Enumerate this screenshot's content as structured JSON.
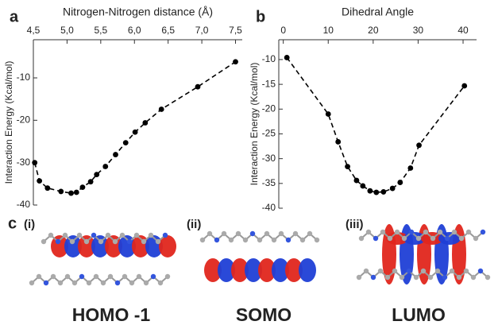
{
  "chart_data": [
    {
      "type": "line",
      "panel": "a",
      "title": "Nitrogen-Nitrogen distance (Å)",
      "ylabel": "Interaction Energy (Kcal/mol)",
      "x": [
        4.52,
        4.59,
        4.71,
        4.91,
        5.06,
        5.14,
        5.23,
        5.35,
        5.44,
        5.57,
        5.72,
        5.87,
        6.01,
        6.16,
        6.4,
        6.94,
        7.5
      ],
      "values": [
        -30,
        -34.3,
        -36,
        -36.8,
        -37.2,
        -37,
        -35.8,
        -34.5,
        -32.8,
        -30.9,
        -28.1,
        -25.3,
        -22.8,
        -20.6,
        -17.4,
        -12.1,
        -6.2
      ],
      "color": "#000000",
      "xlim": [
        4.5,
        7.6
      ],
      "ylim": [
        -40,
        -1
      ],
      "xticks": [
        {
          "value": 4.5,
          "label": "4,5"
        },
        {
          "value": 5.0,
          "label": "5,0"
        },
        {
          "value": 5.5,
          "label": "5,5"
        },
        {
          "value": 6.0,
          "label": "6,0"
        },
        {
          "value": 6.5,
          "label": "6,5"
        },
        {
          "value": 7.0,
          "label": "7,0"
        },
        {
          "value": 7.5,
          "label": "7,5"
        }
      ],
      "yticks": [
        -10,
        -20,
        -30,
        -40
      ]
    },
    {
      "type": "line",
      "panel": "b",
      "title": "Dihedral Angle",
      "ylabel": "Interaction Energy (Kcal/mol)",
      "x": [
        0.8,
        10,
        12.2,
        14.3,
        16.3,
        17.7,
        19.3,
        20.7,
        22.3,
        24.3,
        26,
        28.3,
        30.2,
        40.3
      ],
      "values": [
        -9.6,
        -21,
        -26.6,
        -31.6,
        -34.4,
        -35.5,
        -36.5,
        -36.8,
        -36.7,
        -36,
        -34.8,
        -31.9,
        -27.3,
        -15.3
      ],
      "color": "#000000",
      "xlim": [
        -1,
        43
      ],
      "ylim": [
        -40,
        -6
      ],
      "xticks": [
        0,
        10,
        20,
        30,
        40
      ],
      "yticks": [
        -10,
        -15,
        -20,
        -25,
        -30,
        -35,
        -40
      ]
    }
  ],
  "panel_c": {
    "label": "c",
    "orbitals": [
      {
        "tag": "(i)",
        "name": "HOMO -1"
      },
      {
        "tag": "(ii)",
        "name": "SOMO"
      },
      {
        "tag": "(iii)",
        "name": "LUMO"
      }
    ]
  }
}
